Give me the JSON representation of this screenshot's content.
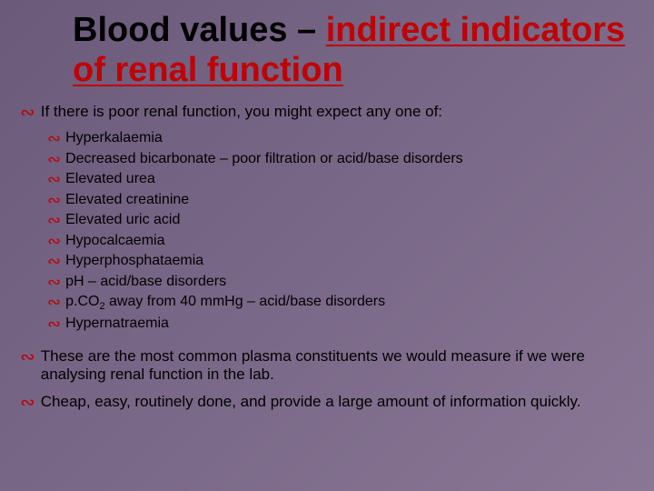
{
  "title_plain": "Blood values – ",
  "title_accent": "indirect indicators of renal function",
  "main_intro": "If  there is poor renal function, you might expect any one of:",
  "sub_items": [
    "Hyperkalaemia",
    "Decreased bicarbonate – poor filtration or acid/base disorders",
    "Elevated urea",
    "Elevated creatinine",
    "Elevated uric acid",
    "Hypocalcaemia",
    "Hyperphosphataemia",
    "pH – acid/base disorders",
    "p.CO₂ away from 40 mmHg – acid/base disorders",
    "Hypernatraemia"
  ],
  "para1": "These are the most common plasma constituents we would measure if we were analysing renal function in the lab.",
  "para2": "Cheap, easy, routinely done, and provide a large amount of information quickly.",
  "colors": {
    "accent": "#c00000",
    "text": "#000000",
    "bg_start": "#6b5a7a",
    "bg_end": "#8a7695"
  },
  "bullet_glyph": "∾",
  "fontsize": {
    "title": 38,
    "main": 17,
    "sub": 16
  }
}
